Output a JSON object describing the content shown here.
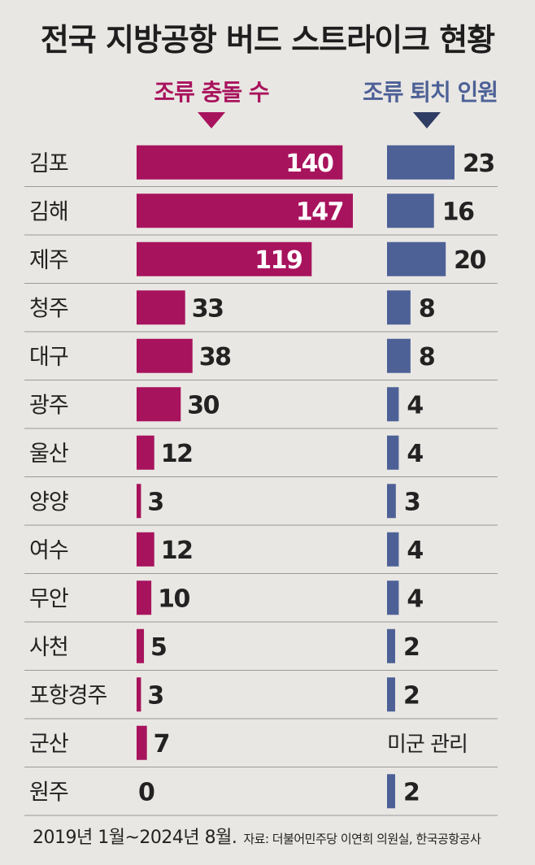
{
  "title": "전국 지방공항 버드 스트라이크 현황",
  "colors": {
    "collision": "#a8135d",
    "personnel": "#4d6197",
    "background": "#e9e7e3",
    "divider": "#9a9a9a"
  },
  "chart_data": {
    "type": "bar",
    "title": "전국 지방공항 버드 스트라이크 현황",
    "categories": [
      "김포",
      "김해",
      "제주",
      "청주",
      "대구",
      "광주",
      "울산",
      "양양",
      "여수",
      "무안",
      "사천",
      "포항경주",
      "군산",
      "원주"
    ],
    "series": [
      {
        "name": "조류 충돌 수",
        "values": [
          140,
          147,
          119,
          33,
          38,
          30,
          12,
          3,
          12,
          10,
          5,
          3,
          7,
          0
        ],
        "labels": [
          "140",
          "147",
          "119",
          "33",
          "38",
          "30",
          "12",
          "3",
          "12",
          "10",
          "5",
          "3",
          "7",
          "0"
        ]
      },
      {
        "name": "조류 퇴치 인원",
        "values": [
          23,
          16,
          20,
          8,
          8,
          4,
          4,
          3,
          4,
          4,
          2,
          2,
          null,
          2
        ],
        "labels": [
          "23",
          "16",
          "20",
          "8",
          "8",
          "4",
          "4",
          "3",
          "4",
          "4",
          "2",
          "2",
          "미군 관리",
          "2"
        ]
      }
    ],
    "orientation": "horizontal",
    "grid": false,
    "legend": "top"
  },
  "footer": {
    "period": "2019년 1월~2024년 8월.",
    "source": "자료: 더불어민주당 이연희 의원실, 한국공항공사"
  }
}
